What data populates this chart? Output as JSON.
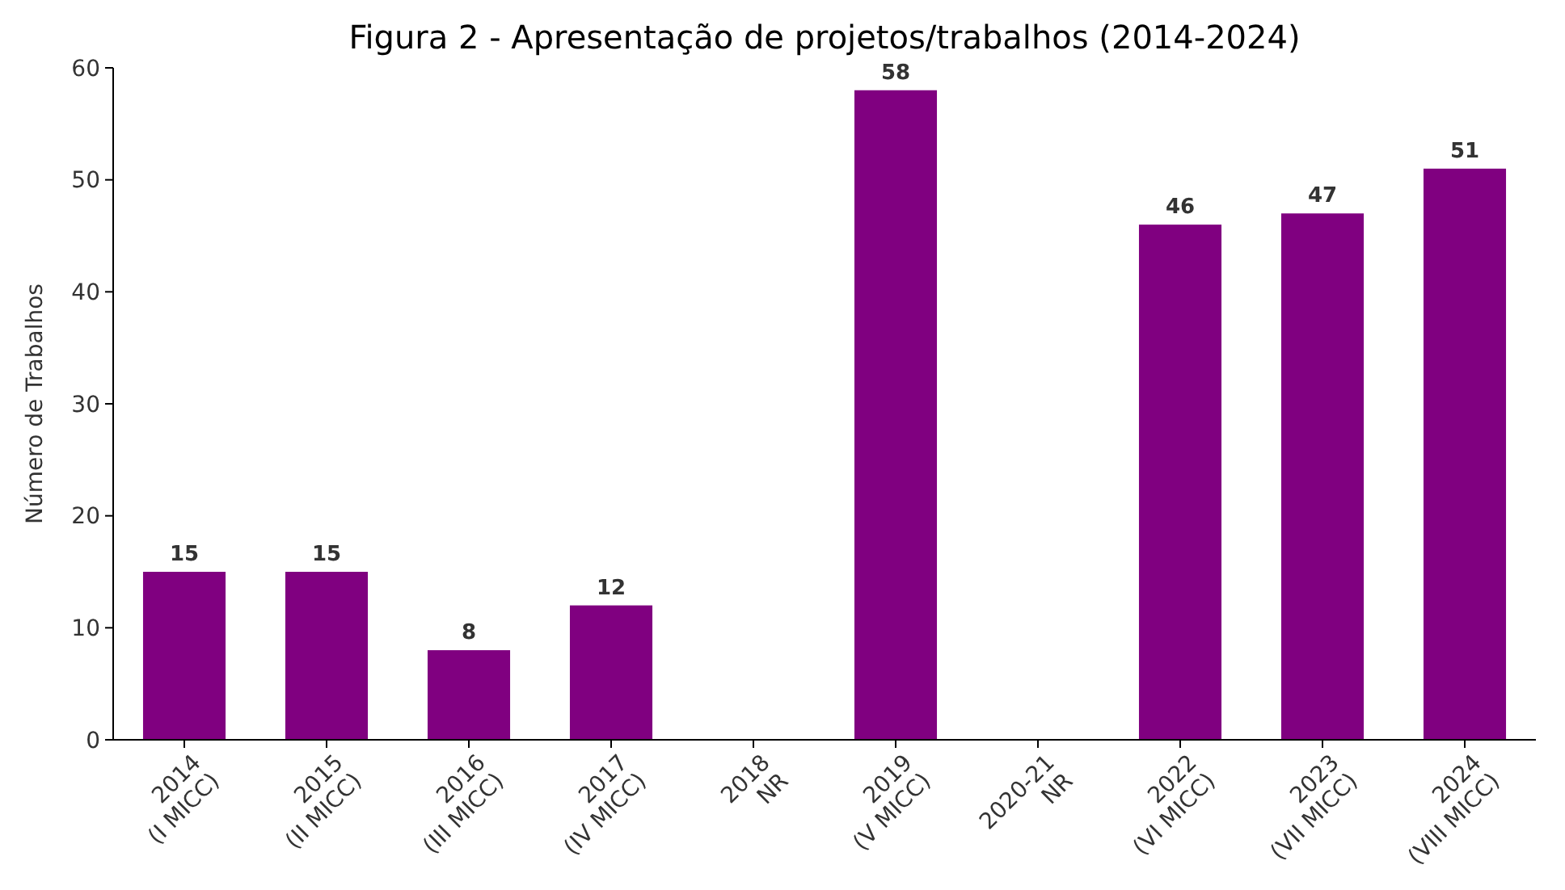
{
  "chart_data": {
    "type": "bar",
    "title": "Figura 2 - Apresentação de projetos/trabalhos (2014-2024)",
    "ylabel": "Número de Trabalhos",
    "categories": [
      "2014\n(I MICC)",
      "2015\n(II MICC)",
      "2016\n(III MICC)",
      "2017\n(IV MICC)",
      "2018\nNR",
      "2019\n(V MICC)",
      "2020-21\nNR",
      "2022\n(VI MICC)",
      "2023\n(VII MICC)",
      "2024\n(VIII MICC)"
    ],
    "values": [
      15,
      15,
      8,
      12,
      null,
      58,
      null,
      46,
      47,
      51
    ],
    "color": "#800080",
    "ylim": [
      0,
      60
    ],
    "yticks": [
      0,
      10,
      20,
      30,
      40,
      50,
      60
    ],
    "data_labels": true
  }
}
